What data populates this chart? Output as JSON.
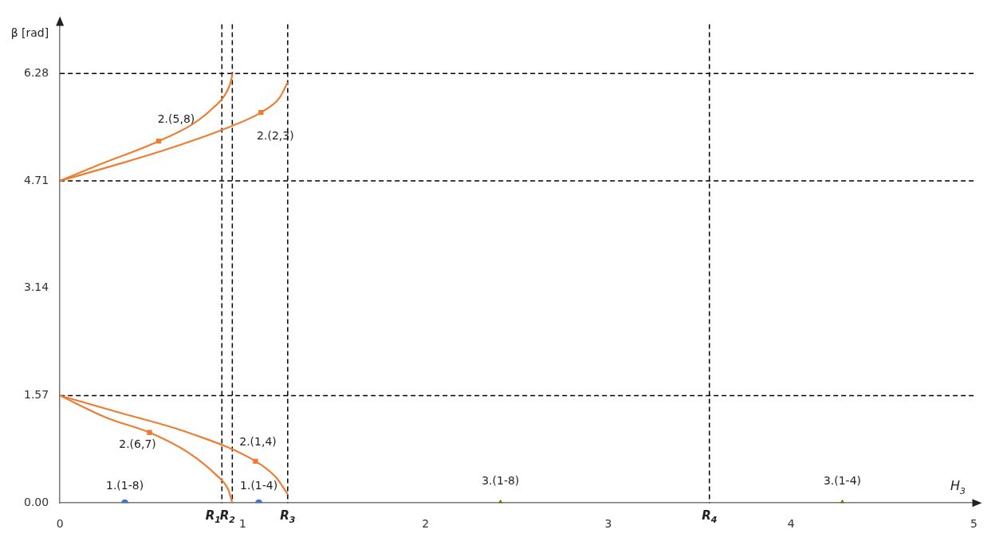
{
  "chart_data": {
    "type": "line",
    "xlabel": "H$_{3}$",
    "ylabel": "β [rad]",
    "xlim": [
      0,
      5
    ],
    "ylim": [
      0,
      7
    ],
    "xticks": [
      0,
      1,
      2,
      3,
      4,
      5
    ],
    "yticks": [
      {
        "value": 0,
        "label": "0.00"
      },
      1.57,
      3.14,
      4.71,
      6.28
    ],
    "grid": false,
    "legend": false,
    "marker": "none",
    "line_style": "solid",
    "series": [
      {
        "type": "line",
        "color": "#ed7d31",
        "x": [
          0,
          0.19,
          0.54,
          0.72,
          0.835,
          0.91,
          0.94,
          0.943
        ],
        "values": [
          4.71,
          4.92,
          5.29,
          5.53,
          5.77,
          6.0,
          6.22,
          6.28
        ]
      },
      {
        "type": "line",
        "color": "#ed7d31",
        "x": [
          0,
          0.34,
          0.63,
          0.92,
          1.1,
          1.2,
          1.246
        ],
        "values": [
          4.71,
          4.97,
          5.21,
          5.49,
          5.71,
          5.92,
          6.15
        ]
      },
      {
        "type": "line",
        "color": "#ed7d31",
        "x": [
          0,
          0.26,
          0.49,
          0.7,
          0.85,
          0.92,
          0.943
        ],
        "values": [
          1.57,
          1.24,
          1.03,
          0.74,
          0.42,
          0.2,
          0
        ]
      },
      {
        "type": "line",
        "color": "#ed7d31",
        "x": [
          0,
          0.34,
          0.7,
          1.07,
          1.18,
          1.246
        ],
        "values": [
          1.57,
          1.31,
          1.03,
          0.61,
          0.38,
          0.13
        ]
      },
      {
        "type": "scatter",
        "marker": "square",
        "color": "#ed7d31",
        "x": [
          0.54,
          1.1,
          0.49,
          1.07
        ],
        "values": [
          5.29,
          5.71,
          1.03,
          0.61
        ]
      },
      {
        "type": "scatter",
        "marker": "circle",
        "name": "1.(1-8)",
        "color": "#4472c4",
        "x": [
          0.355
        ],
        "values": [
          0
        ]
      },
      {
        "type": "scatter",
        "marker": "circle",
        "name": "1.(1-4)",
        "color": "#4472c4",
        "x": [
          1.088
        ],
        "values": [
          0
        ]
      },
      {
        "type": "scatter",
        "marker": "triangle",
        "name": "3.(1-8)",
        "color": "#7f6a00",
        "x": [
          2.41
        ],
        "values": [
          0
        ]
      },
      {
        "type": "scatter",
        "marker": "triangle",
        "name": "3.(1-4)",
        "color": "#7f6a00",
        "x": [
          4.28
        ],
        "values": [
          0
        ]
      }
    ],
    "annotations": [
      {
        "text": "2.(5,8)",
        "x": 0.54,
        "y": 5.29
      },
      {
        "text": "2.(2,3)",
        "x": 1.1,
        "y": 5.71
      },
      {
        "text": "2.(6,7)",
        "x": 0.49,
        "y": 1.03
      },
      {
        "text": "2.(1,4)",
        "x": 1.07,
        "y": 0.61
      }
    ],
    "ref_lines": [
      {
        "axis": "x",
        "value": 0.886,
        "label": "R$_{1}$",
        "color": "#000000",
        "line_style": "dashed"
      },
      {
        "axis": "x",
        "value": 0.943,
        "label": "R$_{2}$",
        "color": "#000000",
        "line_style": "dashed"
      },
      {
        "axis": "x",
        "value": 1.246,
        "label": "R$_{3}$",
        "color": "#000000",
        "line_style": "dashed"
      },
      {
        "axis": "x",
        "value": 3.553,
        "label": "R$_{4}$",
        "color": "#000000",
        "line_style": "dashed"
      },
      {
        "axis": "y",
        "value": 1.57,
        "color": "#000000",
        "line_style": "dashed"
      },
      {
        "axis": "y",
        "value": 4.71,
        "color": "#000000",
        "line_style": "dashed"
      },
      {
        "axis": "y",
        "value": 6.28,
        "color": "#000000",
        "line_style": "dashed"
      }
    ]
  }
}
